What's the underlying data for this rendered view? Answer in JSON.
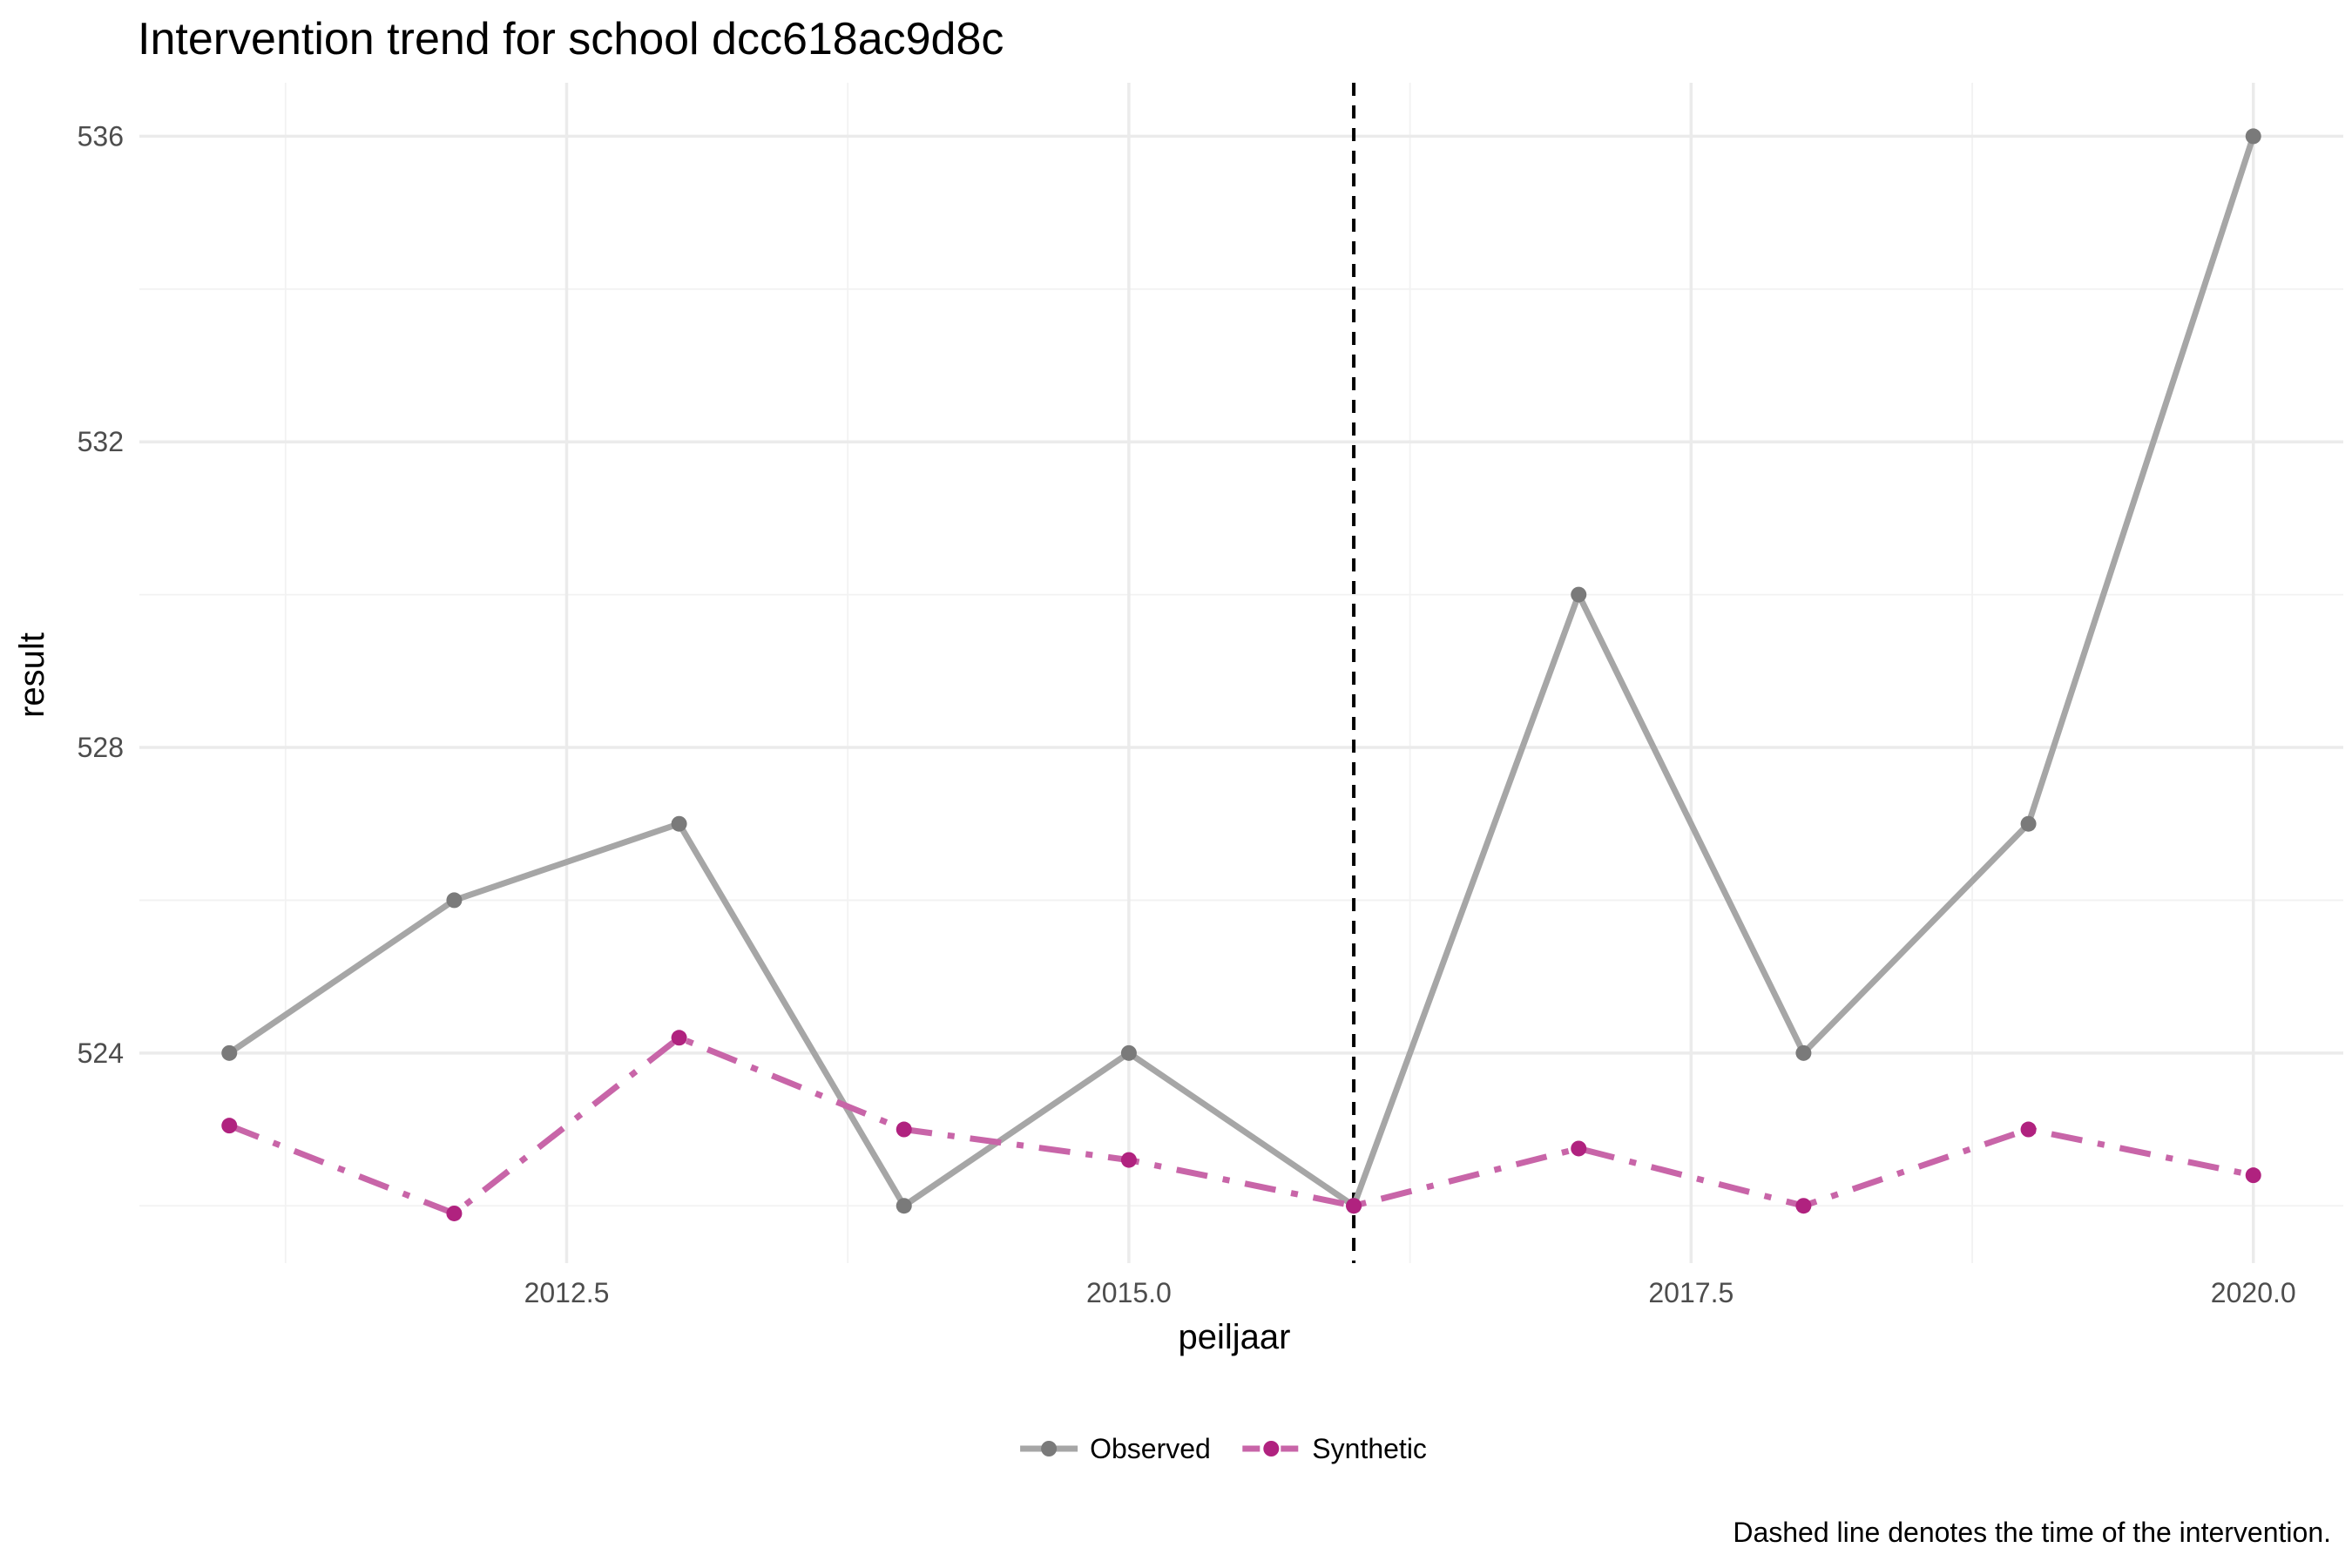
{
  "chart_data": {
    "type": "line",
    "title": "Intervention trend for school dcc618ac9d8c",
    "xlabel": "peiljaar",
    "ylabel": "result",
    "caption": "Dashed line denotes the time of the intervention.",
    "xlim": [
      2010.6,
      2020.4
    ],
    "ylim": [
      521.25,
      536.7
    ],
    "x_major_ticks": [
      2012.5,
      2015.0,
      2017.5,
      2020.0
    ],
    "x_tick_labels": [
      "2012.5",
      "2015.0",
      "2017.5",
      "2020.0"
    ],
    "y_major_ticks": [
      524,
      528,
      532,
      536
    ],
    "y_tick_labels": [
      "524",
      "528",
      "532",
      "536"
    ],
    "grid": true,
    "intervention_x": 2016,
    "legend_position": "bottom",
    "x": [
      2011,
      2012,
      2013,
      2014,
      2015,
      2016,
      2017,
      2018,
      2019,
      2020
    ],
    "series": [
      {
        "name": "Observed",
        "values": [
          524,
          526,
          527,
          522,
          524,
          522,
          530,
          524,
          527,
          536
        ],
        "color": "#a6a6a6",
        "point_color": "#7a7a7a",
        "line_style": "solid"
      },
      {
        "name": "Synthetic",
        "values": [
          523.05,
          521.9,
          524.2,
          523.0,
          522.6,
          522.0,
          522.75,
          522.0,
          523.0,
          522.4
        ],
        "color": "#c865a8",
        "point_color": "#b0227f",
        "line_style": "dashdot"
      }
    ]
  }
}
